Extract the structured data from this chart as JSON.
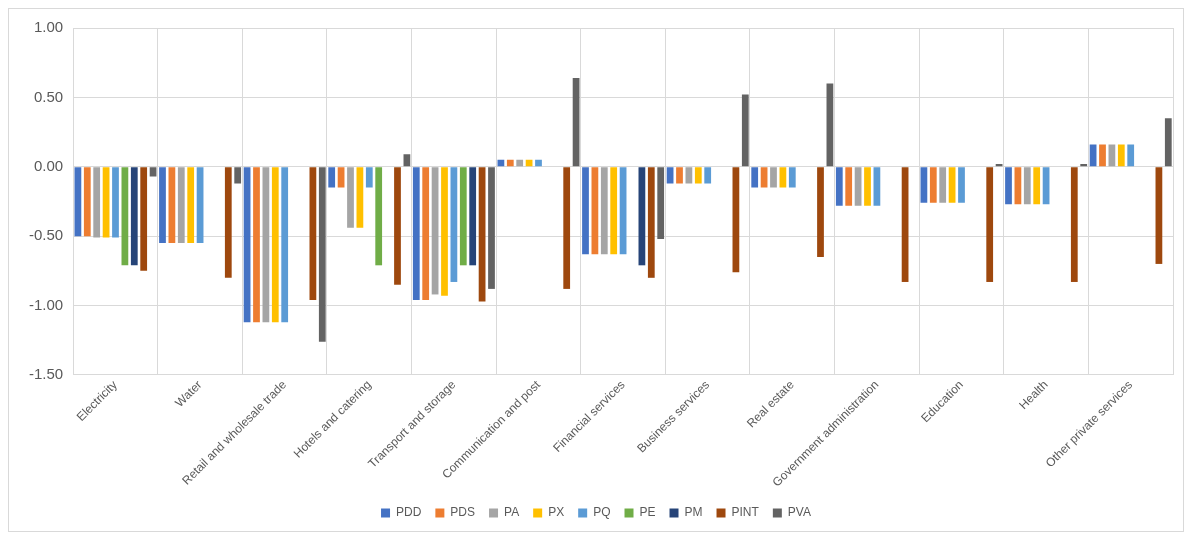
{
  "chart_data": {
    "type": "bar",
    "categories": [
      "Electricity",
      "Water",
      "Retail and wholesale trade",
      "Hotels and catering",
      "Transport and storage",
      "Communication and post",
      "Financial services",
      "Business services",
      "Real estate",
      "Government administration",
      "Education",
      "Health",
      "Other private services"
    ],
    "series": [
      {
        "name": "PDD",
        "color": "#4472c4",
        "values": [
          -0.5,
          -0.55,
          -1.12,
          -0.15,
          -0.96,
          0.05,
          -0.63,
          -0.12,
          -0.15,
          -0.28,
          -0.26,
          -0.27,
          0.16
        ]
      },
      {
        "name": "PDS",
        "color": "#ed7d31",
        "values": [
          -0.5,
          -0.55,
          -1.12,
          -0.15,
          -0.96,
          0.05,
          -0.63,
          -0.12,
          -0.15,
          -0.28,
          -0.26,
          -0.27,
          0.16
        ]
      },
      {
        "name": "PA",
        "color": "#a5a5a5",
        "values": [
          -0.51,
          -0.55,
          -1.12,
          -0.44,
          -0.92,
          0.05,
          -0.63,
          -0.12,
          -0.15,
          -0.28,
          -0.26,
          -0.27,
          0.16
        ]
      },
      {
        "name": "PX",
        "color": "#ffc000",
        "values": [
          -0.51,
          -0.55,
          -1.12,
          -0.44,
          -0.93,
          0.05,
          -0.63,
          -0.12,
          -0.15,
          -0.28,
          -0.26,
          -0.27,
          0.16
        ]
      },
      {
        "name": "PQ",
        "color": "#5b9bd5",
        "values": [
          -0.51,
          -0.55,
          -1.12,
          -0.15,
          -0.83,
          0.05,
          -0.63,
          -0.12,
          -0.15,
          -0.28,
          -0.26,
          -0.27,
          0.16
        ]
      },
      {
        "name": "PE",
        "color": "#70ad47",
        "values": [
          -0.71,
          0,
          0,
          -0.71,
          -0.71,
          0,
          0,
          0,
          0,
          0,
          0,
          0,
          0
        ]
      },
      {
        "name": "PM",
        "color": "#264478",
        "values": [
          -0.71,
          0,
          0,
          0,
          -0.71,
          0,
          -0.71,
          0,
          0,
          0,
          0,
          0,
          0
        ]
      },
      {
        "name": "PINT",
        "color": "#9e480e",
        "values": [
          -0.75,
          -0.8,
          -0.96,
          -0.85,
          -0.97,
          -0.88,
          -0.8,
          -0.76,
          -0.65,
          -0.83,
          -0.83,
          -0.83,
          -0.7
        ]
      },
      {
        "name": "PVA",
        "color": "#636363",
        "values": [
          -0.07,
          -0.12,
          -1.26,
          0.09,
          -0.88,
          0.64,
          -0.52,
          0.52,
          0.6,
          0,
          0.02,
          0.02,
          0.35
        ]
      }
    ],
    "ylim": [
      -1.5,
      1.0
    ],
    "yticks": [
      {
        "value": -1.5,
        "label": "-1.50"
      },
      {
        "value": -1.0,
        "label": "-1.00"
      },
      {
        "value": -0.5,
        "label": "-0.50"
      },
      {
        "value": 0,
        "label": "0.00"
      },
      {
        "value": 0.5,
        "label": "0.50"
      },
      {
        "value": 1.0,
        "label": "1.00"
      }
    ],
    "grid": true,
    "legend": "bottom"
  }
}
